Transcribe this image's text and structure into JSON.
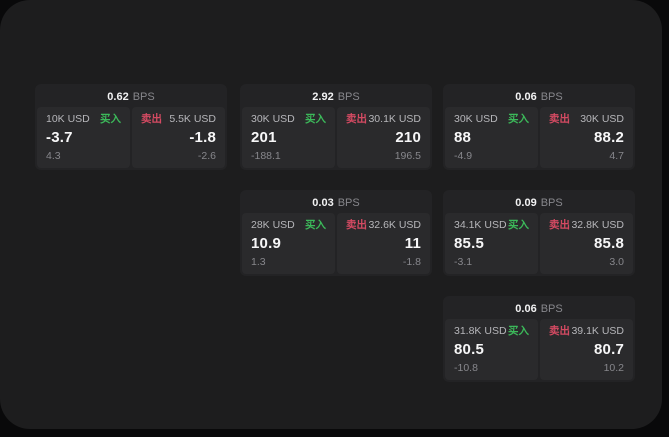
{
  "labels": {
    "bps": "BPS",
    "buy": "买入",
    "sell": "卖出"
  },
  "colors": {
    "buy_accent": "#3cb95a",
    "sell_accent": "#d44a62",
    "window_bg": "#1d1d1e",
    "card_bg": "#232325",
    "panel_bg": "#2a2a2c"
  },
  "cards": [
    {
      "spread": "0.62",
      "buy": {
        "notional": "10K USD",
        "price": "-3.7",
        "delta": "4.3"
      },
      "sell": {
        "notional": "5.5K USD",
        "price": "-1.8",
        "delta": "-2.6"
      }
    },
    {
      "spread": "2.92",
      "buy": {
        "notional": "30K USD",
        "price": "201",
        "delta": "-188.1"
      },
      "sell": {
        "notional": "30.1K USD",
        "price": "210",
        "delta": "196.5"
      }
    },
    {
      "spread": "0.06",
      "buy": {
        "notional": "30K USD",
        "price": "88",
        "delta": "-4.9"
      },
      "sell": {
        "notional": "30K USD",
        "price": "88.2",
        "delta": "4.7"
      }
    },
    {
      "spread": "0.03",
      "buy": {
        "notional": "28K USD",
        "price": "10.9",
        "delta": "1.3"
      },
      "sell": {
        "notional": "32.6K USD",
        "price": "11",
        "delta": "-1.8"
      }
    },
    {
      "spread": "0.09",
      "buy": {
        "notional": "34.1K USD",
        "price": "85.5",
        "delta": "-3.1"
      },
      "sell": {
        "notional": "32.8K USD",
        "price": "85.8",
        "delta": "3.0"
      }
    },
    {
      "spread": "0.06",
      "buy": {
        "notional": "31.8K USD",
        "price": "80.5",
        "delta": "-10.8"
      },
      "sell": {
        "notional": "39.1K USD",
        "price": "80.7",
        "delta": "10.2"
      }
    }
  ]
}
